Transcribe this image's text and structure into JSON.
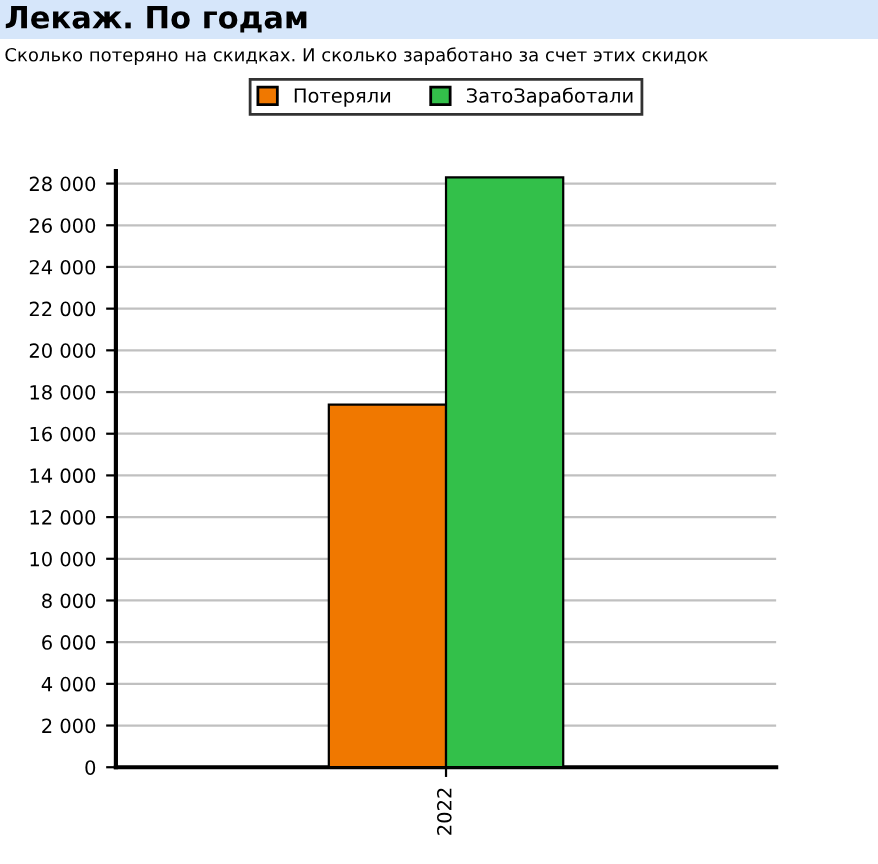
{
  "chart_data": {
    "type": "bar",
    "title": "Лекаж. По годам",
    "subtitle": "Сколько потеряно на скидках. И сколько заработано за счет этих скидок",
    "categories": [
      "2022"
    ],
    "series": [
      {
        "name": "Потеряли",
        "color": "#f07800",
        "values": [
          17400
        ]
      },
      {
        "name": "ЗатоЗаработали",
        "color": "#33c04a",
        "values": [
          28300
        ]
      }
    ],
    "ylim": [
      0,
      28600
    ],
    "yticks": [
      0,
      {
        "value": 2000,
        "label": "2 000"
      },
      {
        "value": 4000,
        "label": "4 000"
      },
      {
        "value": 6000,
        "label": "6 000"
      },
      {
        "value": 8000,
        "label": "8 000"
      },
      {
        "value": 10000,
        "label": "10 000"
      },
      {
        "value": 12000,
        "label": "12 000"
      },
      {
        "value": 14000,
        "label": "14 000"
      },
      {
        "value": 16000,
        "label": "16 000"
      },
      {
        "value": 18000,
        "label": "18 000"
      },
      {
        "value": 20000,
        "label": "20 000"
      },
      {
        "value": 22000,
        "label": "22 000"
      },
      {
        "value": 24000,
        "label": "24 000"
      },
      {
        "value": 26000,
        "label": "26 000"
      },
      {
        "value": 28000,
        "label": "28 000"
      }
    ],
    "grid": "y",
    "legend": "top"
  }
}
